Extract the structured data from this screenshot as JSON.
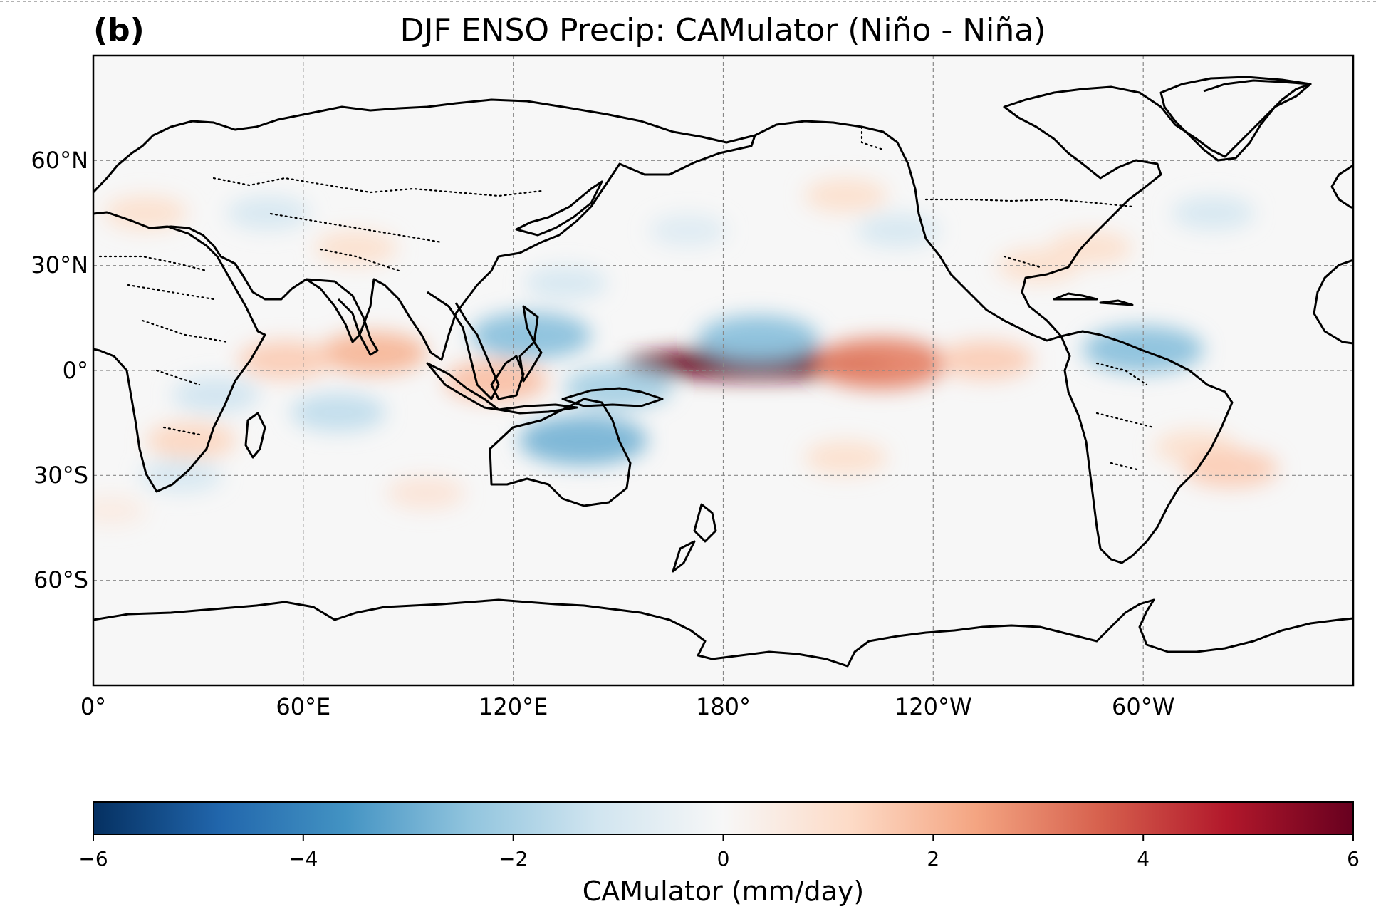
{
  "panel_label": "(b)",
  "title": "DJF ENSO Precip: CAMulator (Niño - Niña)",
  "lon_ticks": [
    "0°",
    "60°E",
    "120°E",
    "180°",
    "120°W",
    "60°W"
  ],
  "lat_ticks": [
    "60°N",
    "30°N",
    "0°",
    "30°S",
    "60°S"
  ],
  "colorbar": {
    "label": "CAMulator (mm/day)",
    "ticks": [
      "−6",
      "−4",
      "−2",
      "0",
      "2",
      "4",
      "6"
    ],
    "vmin": -6,
    "vmax": 6,
    "colormap": "RdBu_r",
    "colors": [
      "#053061",
      "#2166ac",
      "#4393c3",
      "#92c5de",
      "#d1e5f0",
      "#f7f7f7",
      "#fddbc7",
      "#f4a582",
      "#d6604d",
      "#b2182b",
      "#67001f"
    ]
  },
  "chart_data": {
    "type": "heatmap",
    "title": "DJF ENSO Precip: CAMulator (Niño - Niña)",
    "variable": "precipitation difference",
    "units": "mm/day",
    "xlim": [
      0,
      360
    ],
    "ylim": [
      -90,
      90
    ],
    "lon_ticks": [
      0,
      60,
      120,
      180,
      240,
      300
    ],
    "lat_ticks": [
      60,
      30,
      0,
      -30,
      -60
    ],
    "anomalies": [
      {
        "lon": 190,
        "lat": 2,
        "value": 6.0
      },
      {
        "lon": 225,
        "lat": 2,
        "value": 3.0
      },
      {
        "lon": 255,
        "lat": 3,
        "value": 1.5
      },
      {
        "lon": 190,
        "lat": 9,
        "value": -2.5
      },
      {
        "lon": 125,
        "lat": 10,
        "value": -2.5
      },
      {
        "lon": 140,
        "lat": -20,
        "value": -2.8
      },
      {
        "lon": 150,
        "lat": -5,
        "value": -2.0
      },
      {
        "lon": 300,
        "lat": 6,
        "value": -2.5
      },
      {
        "lon": 80,
        "lat": 5,
        "value": 2.0
      },
      {
        "lon": 55,
        "lat": 3,
        "value": 1.5
      },
      {
        "lon": 35,
        "lat": -7,
        "value": -1.2
      },
      {
        "lon": 28,
        "lat": -20,
        "value": 1.3
      },
      {
        "lon": 70,
        "lat": -12,
        "value": -1.5
      },
      {
        "lon": 115,
        "lat": -3,
        "value": 1.8
      },
      {
        "lon": 315,
        "lat": -22,
        "value": 1.0
      },
      {
        "lon": 325,
        "lat": -28,
        "value": 1.5
      },
      {
        "lon": 270,
        "lat": 30,
        "value": 1.0
      },
      {
        "lon": 285,
        "lat": 35,
        "value": 1.0
      },
      {
        "lon": 320,
        "lat": 45,
        "value": -1.0
      },
      {
        "lon": 230,
        "lat": 40,
        "value": -1.0
      },
      {
        "lon": 215,
        "lat": 50,
        "value": 1.0
      },
      {
        "lon": 170,
        "lat": 40,
        "value": -0.8
      },
      {
        "lon": 50,
        "lat": 45,
        "value": -1.0
      },
      {
        "lon": 15,
        "lat": 45,
        "value": 1.0
      },
      {
        "lon": 75,
        "lat": 35,
        "value": 1.0
      },
      {
        "lon": 215,
        "lat": -25,
        "value": 1.0
      },
      {
        "lon": 95,
        "lat": -35,
        "value": 0.8
      },
      {
        "lon": 5,
        "lat": -40,
        "value": 0.5
      },
      {
        "lon": 135,
        "lat": 25,
        "value": -1.0
      },
      {
        "lon": 25,
        "lat": -30,
        "value": -1.0
      }
    ]
  }
}
